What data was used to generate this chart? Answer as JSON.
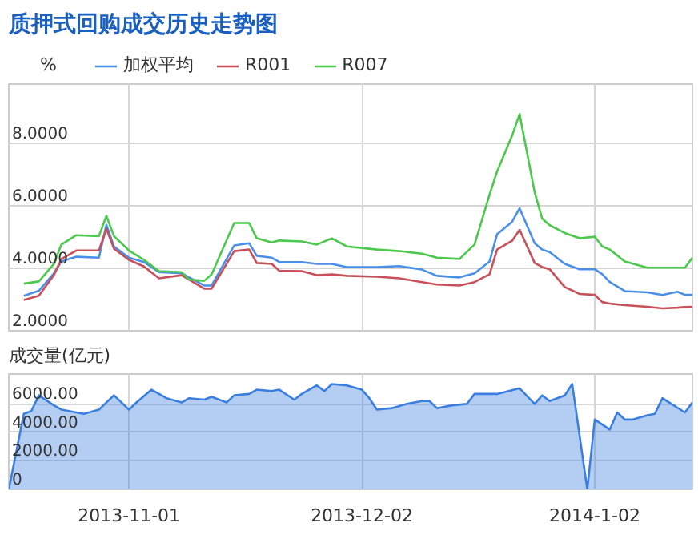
{
  "chart_data": [
    {
      "type": "line",
      "title": "质押式回购成交历史走势图",
      "ylabel": "%",
      "x": [
        "2013-10-18",
        "2013-10-20",
        "2013-10-22",
        "2013-10-23",
        "2013-10-25",
        "2013-10-28",
        "2013-10-29",
        "2013-10-30",
        "2013-11-01",
        "2013-11-03",
        "2013-11-05",
        "2013-11-08",
        "2013-11-09",
        "2013-11-11",
        "2013-11-12",
        "2013-11-15",
        "2013-11-17",
        "2013-11-18",
        "2013-11-20",
        "2013-11-21",
        "2013-11-24",
        "2013-11-26",
        "2013-11-28",
        "2013-11-30",
        "2013-12-04",
        "2013-12-07",
        "2013-12-10",
        "2013-12-12",
        "2013-12-15",
        "2013-12-17",
        "2013-12-19",
        "2013-12-20",
        "2013-12-22",
        "2013-12-23",
        "2013-12-25",
        "2013-12-26",
        "2013-12-27",
        "2013-12-29",
        "2013-12-31",
        "2014-01-02",
        "2014-01-03",
        "2014-01-04",
        "2014-01-06",
        "2014-01-09",
        "2014-01-11",
        "2014-01-13",
        "2014-01-14",
        "2014-01-15"
      ],
      "series": [
        {
          "name": "加权平均",
          "color": "#4a8fe8",
          "values": [
            3.12,
            3.28,
            3.84,
            4.22,
            4.37,
            4.34,
            5.39,
            4.7,
            4.34,
            4.2,
            3.88,
            3.84,
            3.71,
            3.45,
            3.45,
            4.73,
            4.8,
            4.4,
            4.34,
            4.2,
            4.2,
            4.14,
            4.14,
            4.04,
            4.04,
            4.07,
            3.96,
            3.76,
            3.71,
            3.84,
            4.22,
            5.09,
            5.49,
            5.92,
            4.8,
            4.6,
            4.52,
            4.14,
            3.97,
            3.97,
            3.81,
            3.56,
            3.27,
            3.23,
            3.15,
            3.25,
            3.15,
            3.15
          ]
        },
        {
          "name": "R001",
          "color": "#c8505a",
          "values": [
            2.99,
            3.12,
            3.78,
            4.3,
            4.57,
            4.57,
            5.26,
            4.63,
            4.27,
            4.06,
            3.68,
            3.78,
            3.64,
            3.35,
            3.35,
            4.55,
            4.6,
            4.17,
            4.14,
            3.92,
            3.91,
            3.78,
            3.81,
            3.76,
            3.73,
            3.68,
            3.56,
            3.48,
            3.45,
            3.56,
            3.81,
            4.6,
            4.88,
            5.23,
            4.17,
            4.04,
            3.97,
            3.4,
            3.18,
            3.15,
            2.92,
            2.87,
            2.82,
            2.77,
            2.72,
            2.74,
            2.76,
            2.77
          ]
        },
        {
          "name": "R007",
          "color": "#4cc84c",
          "values": [
            3.51,
            3.58,
            4.14,
            4.76,
            5.06,
            5.03,
            5.68,
            5.03,
            4.57,
            4.27,
            3.91,
            3.88,
            3.64,
            3.6,
            3.81,
            5.45,
            5.45,
            4.96,
            4.83,
            4.89,
            4.86,
            4.76,
            4.96,
            4.7,
            4.6,
            4.55,
            4.47,
            4.34,
            4.3,
            4.76,
            6.36,
            7.1,
            8.25,
            8.94,
            6.44,
            5.59,
            5.38,
            5.13,
            4.96,
            5.01,
            4.7,
            4.6,
            4.22,
            4.02,
            4.02,
            4.02,
            4.02,
            4.34
          ]
        }
      ],
      "xlim": [
        "2013-10-16",
        "2014-01-15"
      ],
      "xticks": [
        {
          "value": "2013-11-01",
          "label": null
        },
        {
          "value": "2013-12-02",
          "label": null
        },
        {
          "value": "2014-01-02",
          "label": null
        }
      ],
      "ylim": [
        2,
        9.9
      ],
      "yticks": [
        {
          "value": 2,
          "label": "2.0000"
        },
        {
          "value": 4,
          "label": "4.0000"
        },
        {
          "value": 6,
          "label": "6.0000"
        },
        {
          "value": 8,
          "label": "8.0000"
        }
      ],
      "grid": true,
      "legend": "top",
      "tick_labels": "y",
      "line_style": "solid",
      "marker": "none"
    },
    {
      "type": "area",
      "title": "成交量(亿元)",
      "x": [
        "2013-10-16",
        "2013-10-18",
        "2013-10-19",
        "2013-10-20",
        "2013-10-22",
        "2013-10-23",
        "2013-10-25",
        "2013-10-26",
        "2013-10-28",
        "2013-10-30",
        "2013-11-01",
        "2013-11-02",
        "2013-11-04",
        "2013-11-06",
        "2013-11-08",
        "2013-11-09",
        "2013-11-11",
        "2013-11-12",
        "2013-11-14",
        "2013-11-15",
        "2013-11-17",
        "2013-11-18",
        "2013-11-20",
        "2013-11-21",
        "2013-11-23",
        "2013-11-24",
        "2013-11-26",
        "2013-11-27",
        "2013-11-28",
        "2013-11-30",
        "2013-12-02",
        "2013-12-03",
        "2013-12-04",
        "2013-12-06",
        "2013-12-08",
        "2013-12-10",
        "2013-12-11",
        "2013-12-12",
        "2013-12-14",
        "2013-12-16",
        "2013-12-17",
        "2013-12-20",
        "2013-12-23",
        "2013-12-25",
        "2013-12-26",
        "2013-12-27",
        "2013-12-29",
        "2013-12-30",
        "2014-01-01",
        "2014-01-02",
        "2014-01-04",
        "2014-01-05",
        "2014-01-06",
        "2014-01-07",
        "2014-01-09",
        "2014-01-10",
        "2014-01-11",
        "2014-01-14",
        "2014-01-15"
      ],
      "series": [
        {
          "color": "#3a7fe0",
          "values": [
            0,
            5300,
            5500,
            6600,
            5900,
            5600,
            5400,
            5300,
            5600,
            6600,
            5600,
            6100,
            7000,
            6400,
            6100,
            6400,
            6300,
            6500,
            6100,
            6600,
            6700,
            7000,
            6900,
            7000,
            6300,
            6700,
            7300,
            6900,
            7400,
            7300,
            7000,
            6400,
            5600,
            5700,
            6000,
            6200,
            6200,
            5700,
            5900,
            6000,
            6700,
            6700,
            7100,
            6000,
            6600,
            6200,
            6600,
            7400,
            0,
            4900,
            4200,
            5400,
            4900,
            4900,
            5200,
            5300,
            6400,
            5400,
            6100
          ]
        }
      ],
      "xlim": [
        "2013-10-16",
        "2014-01-15"
      ],
      "xticks": [
        {
          "value": "2013-11-01",
          "label": "2013-11-01"
        },
        {
          "value": "2013-12-02",
          "label": "2013-12-02"
        },
        {
          "value": "2014-01-02",
          "label": "2014-1-02"
        }
      ],
      "ylim": [
        0,
        8100
      ],
      "yticks": [
        0,
        {
          "value": 2000,
          "label": "2000.00"
        },
        {
          "value": 4000,
          "label": "4000.00"
        },
        {
          "value": 6000,
          "label": "6000.00"
        }
      ],
      "grid": true
    }
  ]
}
